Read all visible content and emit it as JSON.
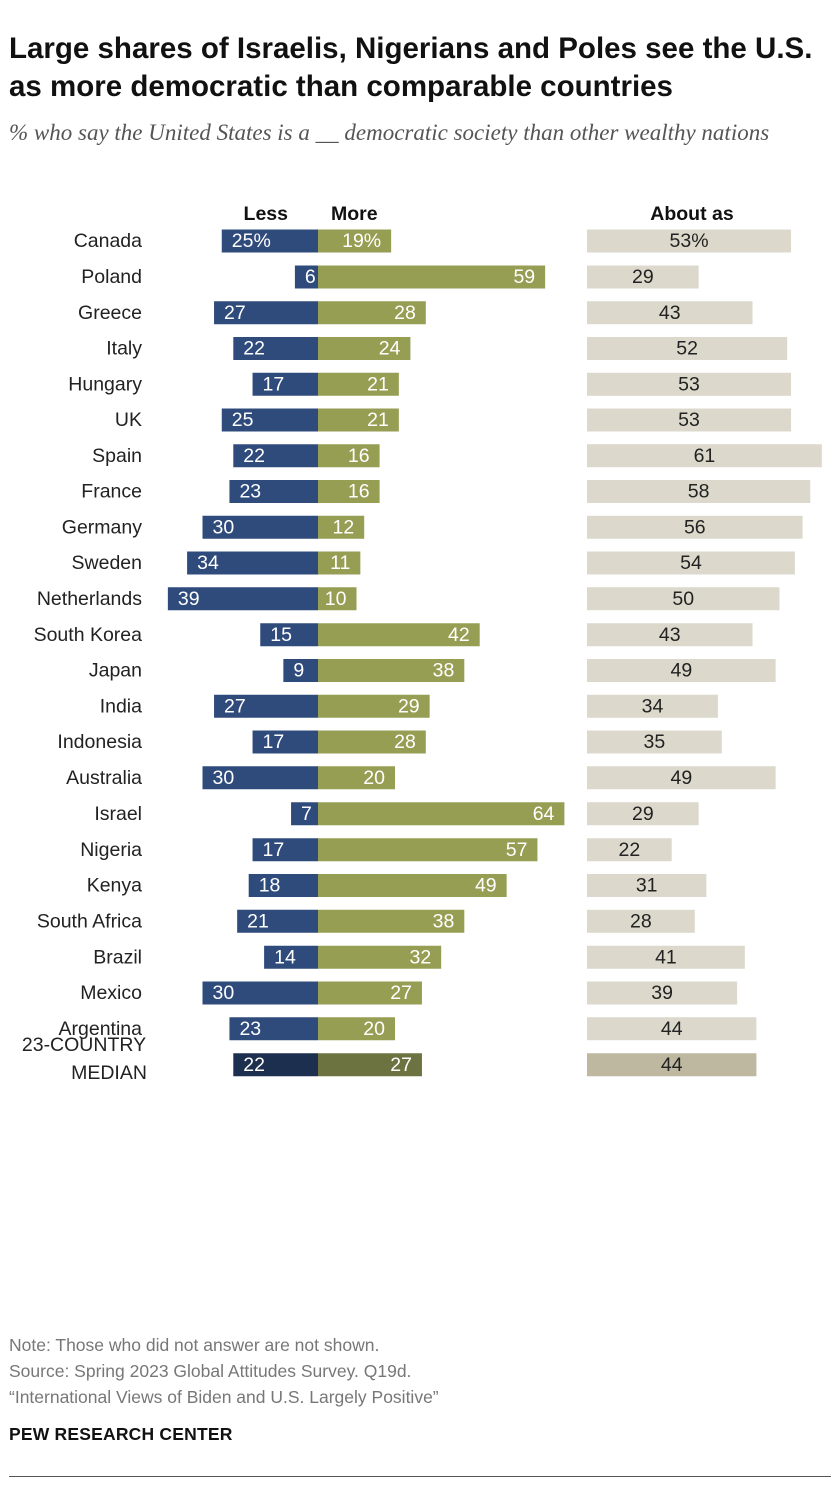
{
  "title": "Large shares of Israelis, Nigerians and Poles see the U.S. as more democratic than comparable countries",
  "subtitle": "% who say the United States is a __ democratic society than other wealthy nations",
  "notes": [
    "Note: Those who did not answer are not shown.",
    "Source: Spring 2023 Global Attitudes Survey. Q19d.",
    "“International Views of Biden and U.S. Largely Positive”"
  ],
  "brand": "PEW RESEARCH CENTER",
  "colors": {
    "less": "#2f4b7c",
    "more": "#969e54",
    "about": "#dcd9cc",
    "less_median": "#1d2f4f",
    "more_median": "#6c7340",
    "about_median": "#bdb89f"
  },
  "chart_data": {
    "type": "bar",
    "orientation": "horizontal",
    "series": [
      {
        "name": "Less",
        "values": [
          25,
          6,
          27,
          22,
          17,
          25,
          22,
          23,
          30,
          34,
          39,
          15,
          9,
          27,
          17,
          30,
          7,
          17,
          18,
          21,
          14,
          30,
          23,
          22
        ]
      },
      {
        "name": "More",
        "values": [
          19,
          59,
          28,
          24,
          21,
          21,
          16,
          16,
          12,
          11,
          10,
          42,
          38,
          29,
          28,
          20,
          64,
          57,
          49,
          38,
          32,
          27,
          20,
          27
        ]
      },
      {
        "name": "About as",
        "values": [
          53,
          29,
          43,
          52,
          53,
          53,
          61,
          58,
          56,
          54,
          50,
          43,
          49,
          34,
          35,
          49,
          29,
          22,
          31,
          28,
          41,
          39,
          44,
          44
        ]
      }
    ],
    "categories": [
      "Canada",
      "Poland",
      "Greece",
      "Italy",
      "Hungary",
      "UK",
      "Spain",
      "France",
      "Germany",
      "Sweden",
      "Netherlands",
      "South Korea",
      "Japan",
      "India",
      "Indonesia",
      "Australia",
      "Israel",
      "Nigeria",
      "Kenya",
      "South Africa",
      "Brazil",
      "Mexico",
      "Argentina",
      "23-COUNTRY MEDIAN"
    ],
    "groups": [
      [
        "Canada"
      ],
      [
        "Poland",
        "Greece",
        "Italy",
        "Hungary",
        "UK",
        "Spain",
        "France",
        "Germany",
        "Sweden",
        "Netherlands"
      ],
      [
        "South Korea",
        "Japan",
        "India",
        "Indonesia",
        "Australia"
      ],
      [
        "Israel"
      ],
      [
        "Nigeria",
        "Kenya",
        "South Africa"
      ],
      [
        "Brazil",
        "Mexico",
        "Argentina"
      ],
      [
        "23-COUNTRY MEDIAN"
      ]
    ],
    "first_row_suffix": "%"
  }
}
